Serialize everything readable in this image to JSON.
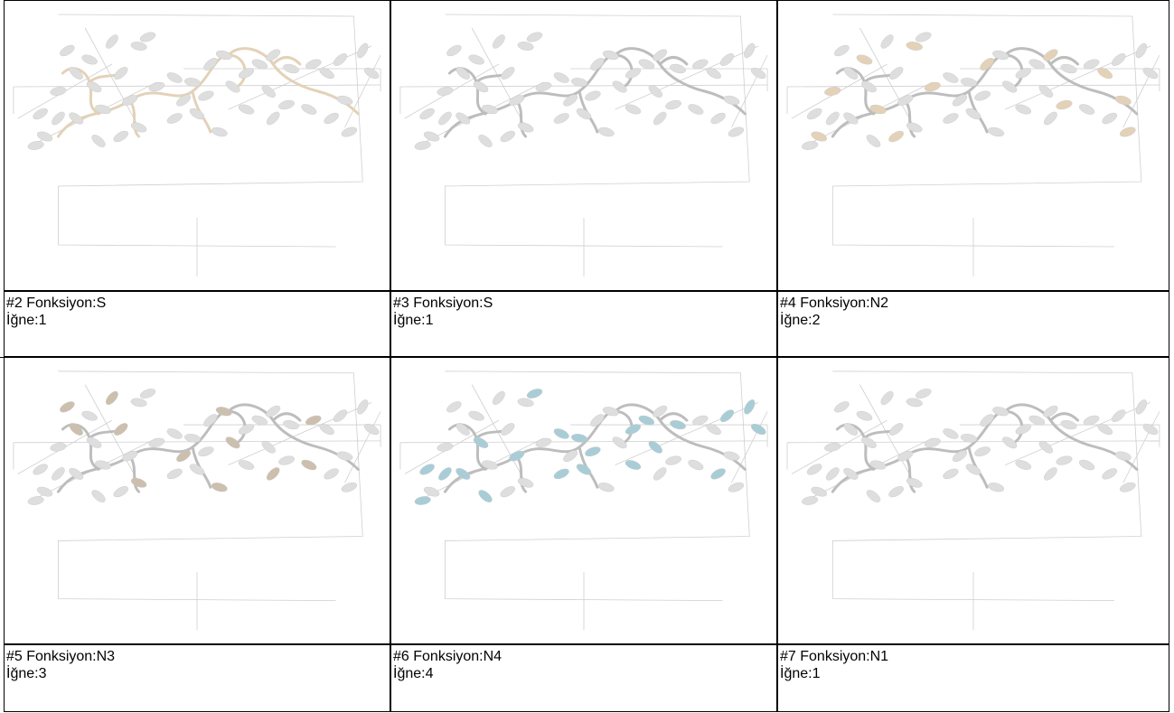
{
  "colors": {
    "border": "#000000",
    "outline": "#cfcfcf",
    "stem_gray": "#bdbdbd",
    "leaf_gray": "#dedede",
    "beige": "#e3d2b8",
    "tan": "#cdbfae",
    "teal": "#a9cdd6"
  },
  "cells": [
    {
      "function_line": "#2 Fonksiyon:S",
      "needle_line": "İğne:1",
      "highlight": "stem",
      "highlight_color": "beige"
    },
    {
      "function_line": "#3 Fonksiyon:S",
      "needle_line": "İğne:1",
      "highlight": "none",
      "highlight_color": "stem_gray"
    },
    {
      "function_line": "#4 Fonksiyon:N2",
      "needle_line": "İğne:2",
      "highlight": "leaves_a",
      "highlight_color": "beige"
    },
    {
      "function_line": "#5 Fonksiyon:N3",
      "needle_line": "İğne:3",
      "highlight": "leaves_b",
      "highlight_color": "tan"
    },
    {
      "function_line": "#6 Fonksiyon:N4",
      "needle_line": "İğne:4",
      "highlight": "leaves_c",
      "highlight_color": "teal"
    },
    {
      "function_line": "#7 Fonksiyon:N1",
      "needle_line": "İğne:1",
      "highlight": "none",
      "highlight_color": "stem_gray"
    }
  ]
}
